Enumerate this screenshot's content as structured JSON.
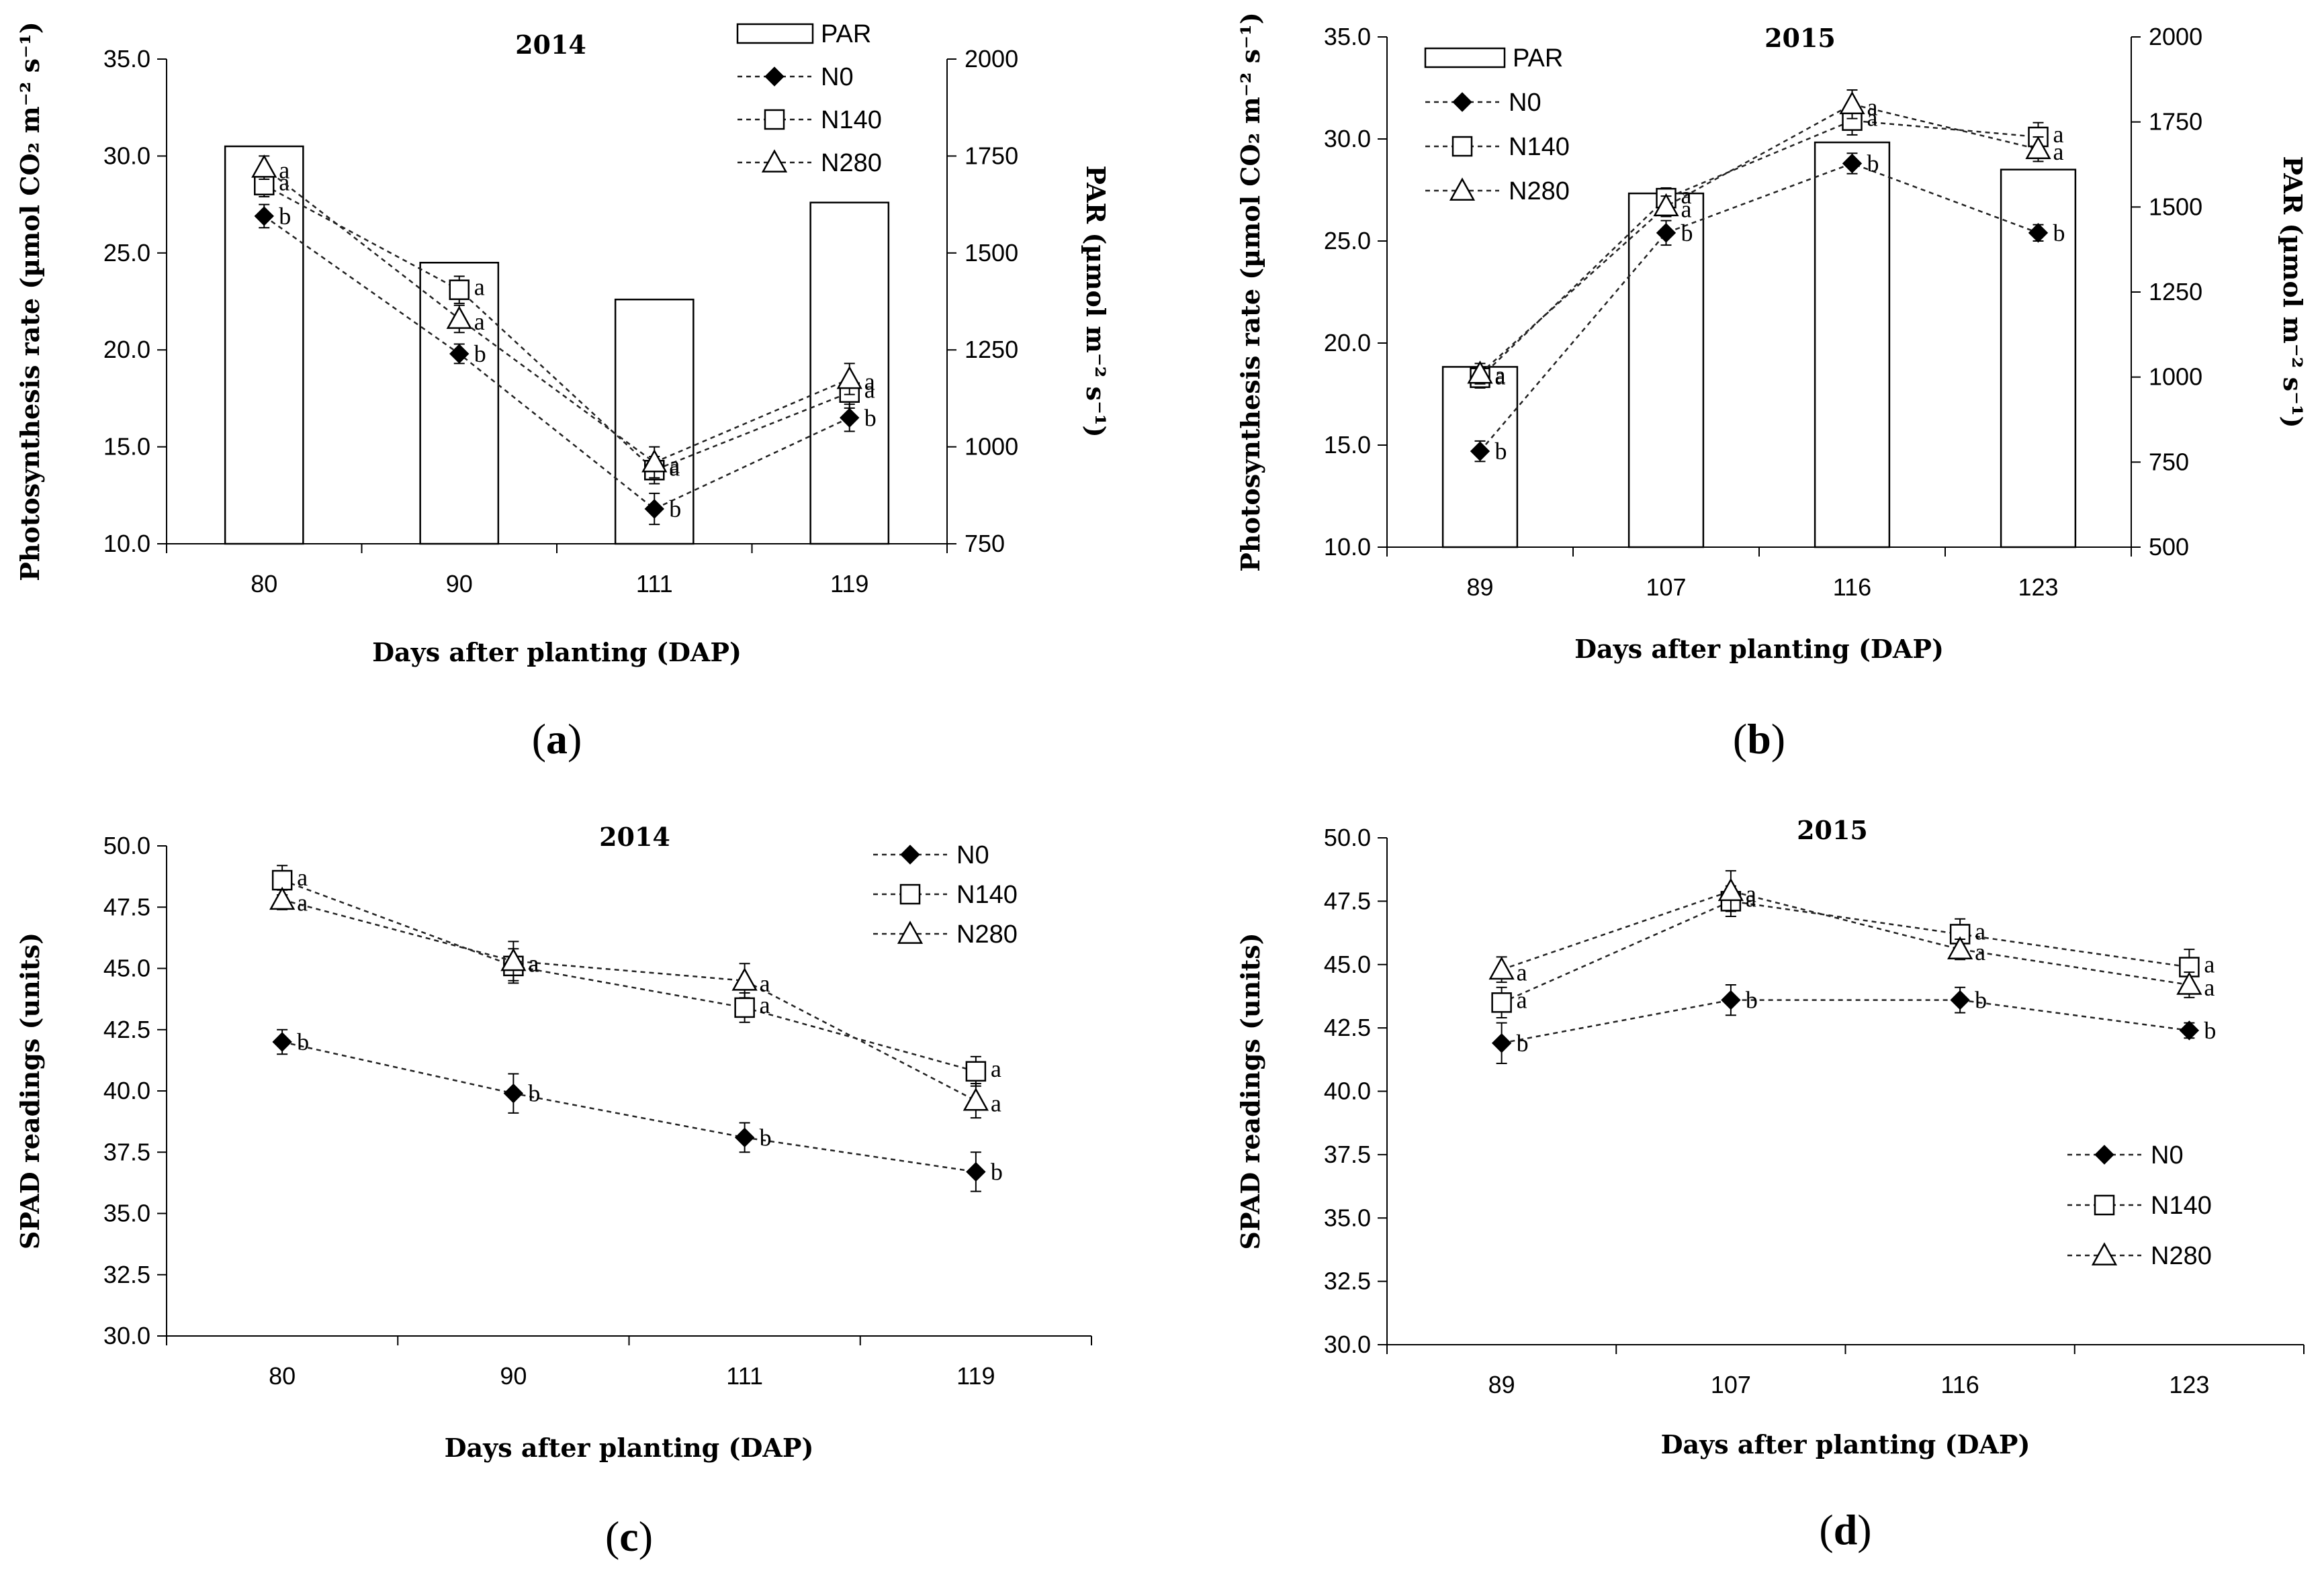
{
  "panel_labels": [
    "a",
    "b",
    "c",
    "d"
  ],
  "chart_data": [
    {
      "panel": "a",
      "type": "bar+line",
      "title": "2014",
      "xlabel": "Days after planting (DAP)",
      "ylabel": "Photosynthesis rate (µmol CO₂ m⁻² s⁻¹)",
      "y2label": "PAR (µmol m⁻² s⁻¹)",
      "categories": [
        "80",
        "90",
        "111",
        "119"
      ],
      "ylim": [
        10,
        35
      ],
      "yticks": [
        "10.0",
        "15.0",
        "20.0",
        "25.0",
        "30.0",
        "35.0"
      ],
      "y2lim": [
        750,
        2000
      ],
      "y2ticks": [
        "750",
        "1000",
        "1250",
        "1500",
        "1750",
        "2000"
      ],
      "bar_series": {
        "name": "PAR",
        "values": [
          1775,
          1475,
          1380,
          1630
        ]
      },
      "series": [
        {
          "name": "N0",
          "marker": "diamond",
          "values": [
            26.9,
            19.8,
            11.8,
            16.5
          ],
          "err": [
            0.6,
            0.5,
            0.8,
            0.7
          ],
          "sig": [
            "b",
            "b",
            "b",
            "b"
          ]
        },
        {
          "name": "N140",
          "marker": "square",
          "values": [
            28.5,
            23.1,
            13.8,
            17.8
          ],
          "err": [
            0.6,
            0.7,
            0.7,
            0.8
          ],
          "sig": [
            "a",
            "a",
            "a",
            "a"
          ]
        },
        {
          "name": "N280",
          "marker": "triangle",
          "values": [
            29.4,
            21.6,
            14.2,
            18.5
          ],
          "err": [
            0.6,
            0.7,
            0.8,
            0.8
          ],
          "sig": [
            "a",
            "a",
            "a",
            "a"
          ]
        }
      ],
      "legend": [
        "PAR",
        "N0",
        "N140",
        "N280"
      ],
      "legend_position": "top-right"
    },
    {
      "panel": "b",
      "type": "bar+line",
      "title": "2015",
      "xlabel": "Days after planting (DAP)",
      "ylabel": "Photosynthesis rate (µmol CO₂ m⁻² s⁻¹)",
      "y2label": "PAR (µmol m⁻² s⁻¹)",
      "categories": [
        "89",
        "107",
        "116",
        "123"
      ],
      "ylim": [
        10,
        35
      ],
      "yticks": [
        "10.0",
        "15.0",
        "20.0",
        "25.0",
        "30.0",
        "35.0"
      ],
      "y2lim": [
        500,
        2000
      ],
      "y2ticks": [
        "500",
        "750",
        "1000",
        "1250",
        "1500",
        "1750",
        "2000"
      ],
      "bar_series": {
        "name": "PAR",
        "values": [
          1030,
          1540,
          1690,
          1610
        ]
      },
      "series": [
        {
          "name": "N0",
          "marker": "diamond",
          "values": [
            14.7,
            25.4,
            28.8,
            25.4
          ],
          "err": [
            0.5,
            0.6,
            0.5,
            0.4
          ],
          "sig": [
            "b",
            "b",
            "b",
            "b"
          ]
        },
        {
          "name": "N140",
          "marker": "square",
          "values": [
            18.3,
            27.1,
            30.9,
            30.1
          ],
          "err": [
            0.5,
            0.5,
            0.7,
            0.7
          ],
          "sig": [
            "a",
            "a",
            "a",
            "a"
          ]
        },
        {
          "name": "N280",
          "marker": "triangle",
          "values": [
            18.5,
            26.7,
            31.7,
            29.5
          ],
          "err": [
            0.5,
            0.5,
            0.7,
            0.6
          ],
          "sig": [
            "a",
            "a",
            "a",
            "a"
          ]
        }
      ],
      "legend": [
        "PAR",
        "N0",
        "N140",
        "N280"
      ],
      "legend_position": "top-left"
    },
    {
      "panel": "c",
      "type": "line",
      "title": "2014",
      "xlabel": "Days after planting (DAP)",
      "ylabel": "SPAD readings (units)",
      "categories": [
        "80",
        "90",
        "111",
        "119"
      ],
      "ylim": [
        30,
        50
      ],
      "yticks": [
        "30.0",
        "32.5",
        "35.0",
        "37.5",
        "40.0",
        "42.5",
        "45.0",
        "47.5",
        "50.0"
      ],
      "series": [
        {
          "name": "N0",
          "marker": "diamond",
          "values": [
            42.0,
            39.9,
            38.1,
            36.7
          ],
          "err": [
            0.5,
            0.8,
            0.6,
            0.8
          ],
          "sig": [
            "b",
            "b",
            "b",
            "b"
          ]
        },
        {
          "name": "N140",
          "marker": "square",
          "values": [
            48.6,
            45.1,
            43.4,
            40.8
          ],
          "err": [
            0.6,
            0.7,
            0.6,
            0.6
          ],
          "sig": [
            "a",
            "a",
            "a",
            "a"
          ]
        },
        {
          "name": "N280",
          "marker": "triangle",
          "values": [
            47.8,
            45.3,
            44.5,
            39.6
          ],
          "err": [
            0.4,
            0.8,
            0.7,
            0.7
          ],
          "sig": [
            "a",
            "a",
            "a",
            "a"
          ]
        }
      ],
      "legend": [
        "N0",
        "N140",
        "N280"
      ],
      "legend_position": "top-right"
    },
    {
      "panel": "d",
      "type": "line",
      "title": "2015",
      "xlabel": "Days after planting (DAP)",
      "ylabel": "SPAD readings (units)",
      "categories": [
        "89",
        "107",
        "116",
        "123"
      ],
      "ylim": [
        30,
        50
      ],
      "yticks": [
        "30.0",
        "32.5",
        "35.0",
        "37.5",
        "40.0",
        "42.5",
        "45.0",
        "47.5",
        "50.0"
      ],
      "series": [
        {
          "name": "N0",
          "marker": "diamond",
          "values": [
            41.9,
            43.6,
            43.6,
            42.4
          ],
          "err": [
            0.8,
            0.6,
            0.5,
            0.3
          ],
          "sig": [
            "b",
            "b",
            "b",
            "b"
          ]
        },
        {
          "name": "N140",
          "marker": "square",
          "values": [
            43.5,
            47.5,
            46.2,
            44.9
          ],
          "err": [
            0.6,
            0.6,
            0.6,
            0.7
          ],
          "sig": [
            "a",
            "a",
            "a",
            "a"
          ]
        },
        {
          "name": "N280",
          "marker": "triangle",
          "values": [
            44.8,
            47.9,
            45.6,
            44.2
          ],
          "err": [
            0.5,
            0.8,
            0.4,
            0.5
          ],
          "sig": [
            "a",
            "a",
            "a",
            "a"
          ]
        }
      ],
      "legend": [
        "N0",
        "N140",
        "N280"
      ],
      "legend_position": "bottom-right"
    }
  ]
}
